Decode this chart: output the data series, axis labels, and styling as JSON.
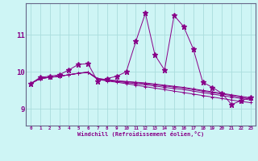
{
  "xlabel": "Windchill (Refroidissement éolien,°C)",
  "background_color": "#cef5f5",
  "grid_color": "#aadddd",
  "line_color": "#880088",
  "spine_color": "#666688",
  "x_ticks": [
    0,
    1,
    2,
    3,
    4,
    5,
    6,
    7,
    8,
    9,
    10,
    11,
    12,
    13,
    14,
    15,
    16,
    17,
    18,
    19,
    20,
    21,
    22,
    23
  ],
  "y_ticks": [
    9,
    10,
    11
  ],
  "ylim": [
    8.55,
    11.85
  ],
  "xlim": [
    -0.5,
    23.5
  ],
  "series_main": [
    9.68,
    9.85,
    9.88,
    9.92,
    10.05,
    10.2,
    10.22,
    9.75,
    9.82,
    9.88,
    10.0,
    10.82,
    11.58,
    10.45,
    10.05,
    11.52,
    11.22,
    10.62,
    9.72,
    9.58,
    9.42,
    9.12,
    9.22,
    9.32
  ],
  "series_smooth": [
    [
      9.68,
      9.82,
      9.85,
      9.88,
      9.92,
      9.96,
      9.98,
      9.8,
      9.75,
      9.72,
      9.68,
      9.64,
      9.6,
      9.56,
      9.52,
      9.48,
      9.44,
      9.4,
      9.36,
      9.32,
      9.28,
      9.24,
      9.2,
      9.17
    ],
    [
      9.68,
      9.82,
      9.85,
      9.88,
      9.92,
      9.96,
      9.99,
      9.81,
      9.77,
      9.74,
      9.71,
      9.68,
      9.65,
      9.62,
      9.58,
      9.55,
      9.52,
      9.48,
      9.44,
      9.4,
      9.36,
      9.32,
      9.28,
      9.24
    ],
    [
      9.68,
      9.82,
      9.85,
      9.88,
      9.92,
      9.96,
      9.99,
      9.82,
      9.78,
      9.75,
      9.73,
      9.71,
      9.68,
      9.65,
      9.62,
      9.59,
      9.56,
      9.52,
      9.48,
      9.44,
      9.4,
      9.36,
      9.31,
      9.27
    ],
    [
      9.68,
      9.82,
      9.85,
      9.88,
      9.92,
      9.96,
      9.99,
      9.82,
      9.79,
      9.76,
      9.74,
      9.72,
      9.7,
      9.67,
      9.64,
      9.61,
      9.58,
      9.54,
      9.5,
      9.46,
      9.42,
      9.38,
      9.34,
      9.3
    ]
  ]
}
